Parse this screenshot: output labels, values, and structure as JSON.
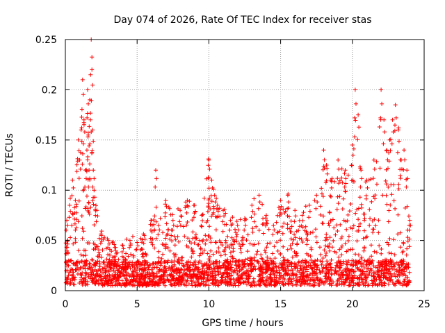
{
  "chart_data": {
    "type": "scatter",
    "title": "Day 074 of 2026, Rate Of TEC Index for receiver stas",
    "xlabel": "GPS time / hours",
    "ylabel": "ROTI / TECUs",
    "xlim": [
      0,
      25
    ],
    "ylim": [
      0,
      0.25
    ],
    "xticks": [
      0,
      5,
      10,
      15,
      20,
      25
    ],
    "xtick_labels": [
      "0",
      "5",
      "10",
      "15",
      "20",
      "25"
    ],
    "yticks": [
      0,
      0.05,
      0.1,
      0.15,
      0.2,
      0.25
    ],
    "ytick_labels": [
      "0",
      "0.05",
      "0.1",
      "0.15",
      "0.2",
      "0.25"
    ],
    "grid": true,
    "marker": "+",
    "color": "#ff0000",
    "series": [
      {
        "name": "ROTI",
        "x": [
          0.1,
          0.3,
          0.5,
          0.7,
          0.9,
          1.0,
          1.1,
          1.2,
          1.3,
          1.4,
          1.5,
          1.55,
          1.6,
          1.65,
          1.7,
          1.75,
          1.8,
          1.85,
          1.9,
          1.95,
          2.0,
          2.2,
          2.5,
          3.0,
          3.5,
          4.0,
          4.5,
          5.0,
          5.5,
          6.0,
          6.3,
          6.5,
          7.0,
          7.5,
          8.0,
          8.5,
          9.0,
          9.5,
          10.0,
          10.2,
          10.4,
          10.6,
          11.0,
          11.5,
          12.0,
          12.5,
          13.0,
          13.5,
          14.0,
          14.5,
          15.0,
          15.5,
          16.0,
          16.5,
          17.0,
          17.5,
          18.0,
          18.2,
          18.5,
          19.0,
          19.5,
          20.0,
          20.2,
          20.4,
          20.6,
          21.0,
          21.5,
          22.0,
          22.2,
          22.4,
          22.6,
          22.8,
          23.0,
          23.2,
          23.4,
          23.6,
          23.8,
          24.0
        ],
        "y": [
          0.07,
          0.085,
          0.11,
          0.09,
          0.15,
          0.13,
          0.16,
          0.21,
          0.17,
          0.12,
          0.14,
          0.2,
          0.155,
          0.12,
          0.19,
          0.17,
          0.25,
          0.22,
          0.16,
          0.12,
          0.1,
          0.08,
          0.055,
          0.05,
          0.04,
          0.045,
          0.05,
          0.048,
          0.055,
          0.07,
          0.12,
          0.065,
          0.09,
          0.07,
          0.08,
          0.09,
          0.085,
          0.075,
          0.13,
          0.11,
          0.095,
          0.085,
          0.08,
          0.07,
          0.065,
          0.07,
          0.085,
          0.095,
          0.075,
          0.065,
          0.09,
          0.095,
          0.08,
          0.075,
          0.085,
          0.095,
          0.14,
          0.125,
          0.11,
          0.13,
          0.12,
          0.145,
          0.2,
          0.175,
          0.12,
          0.11,
          0.13,
          0.2,
          0.17,
          0.14,
          0.15,
          0.17,
          0.185,
          0.16,
          0.13,
          0.14,
          0.12,
          0.07
        ],
        "noise_floor": [
          0.005,
          0.03
        ]
      }
    ]
  }
}
